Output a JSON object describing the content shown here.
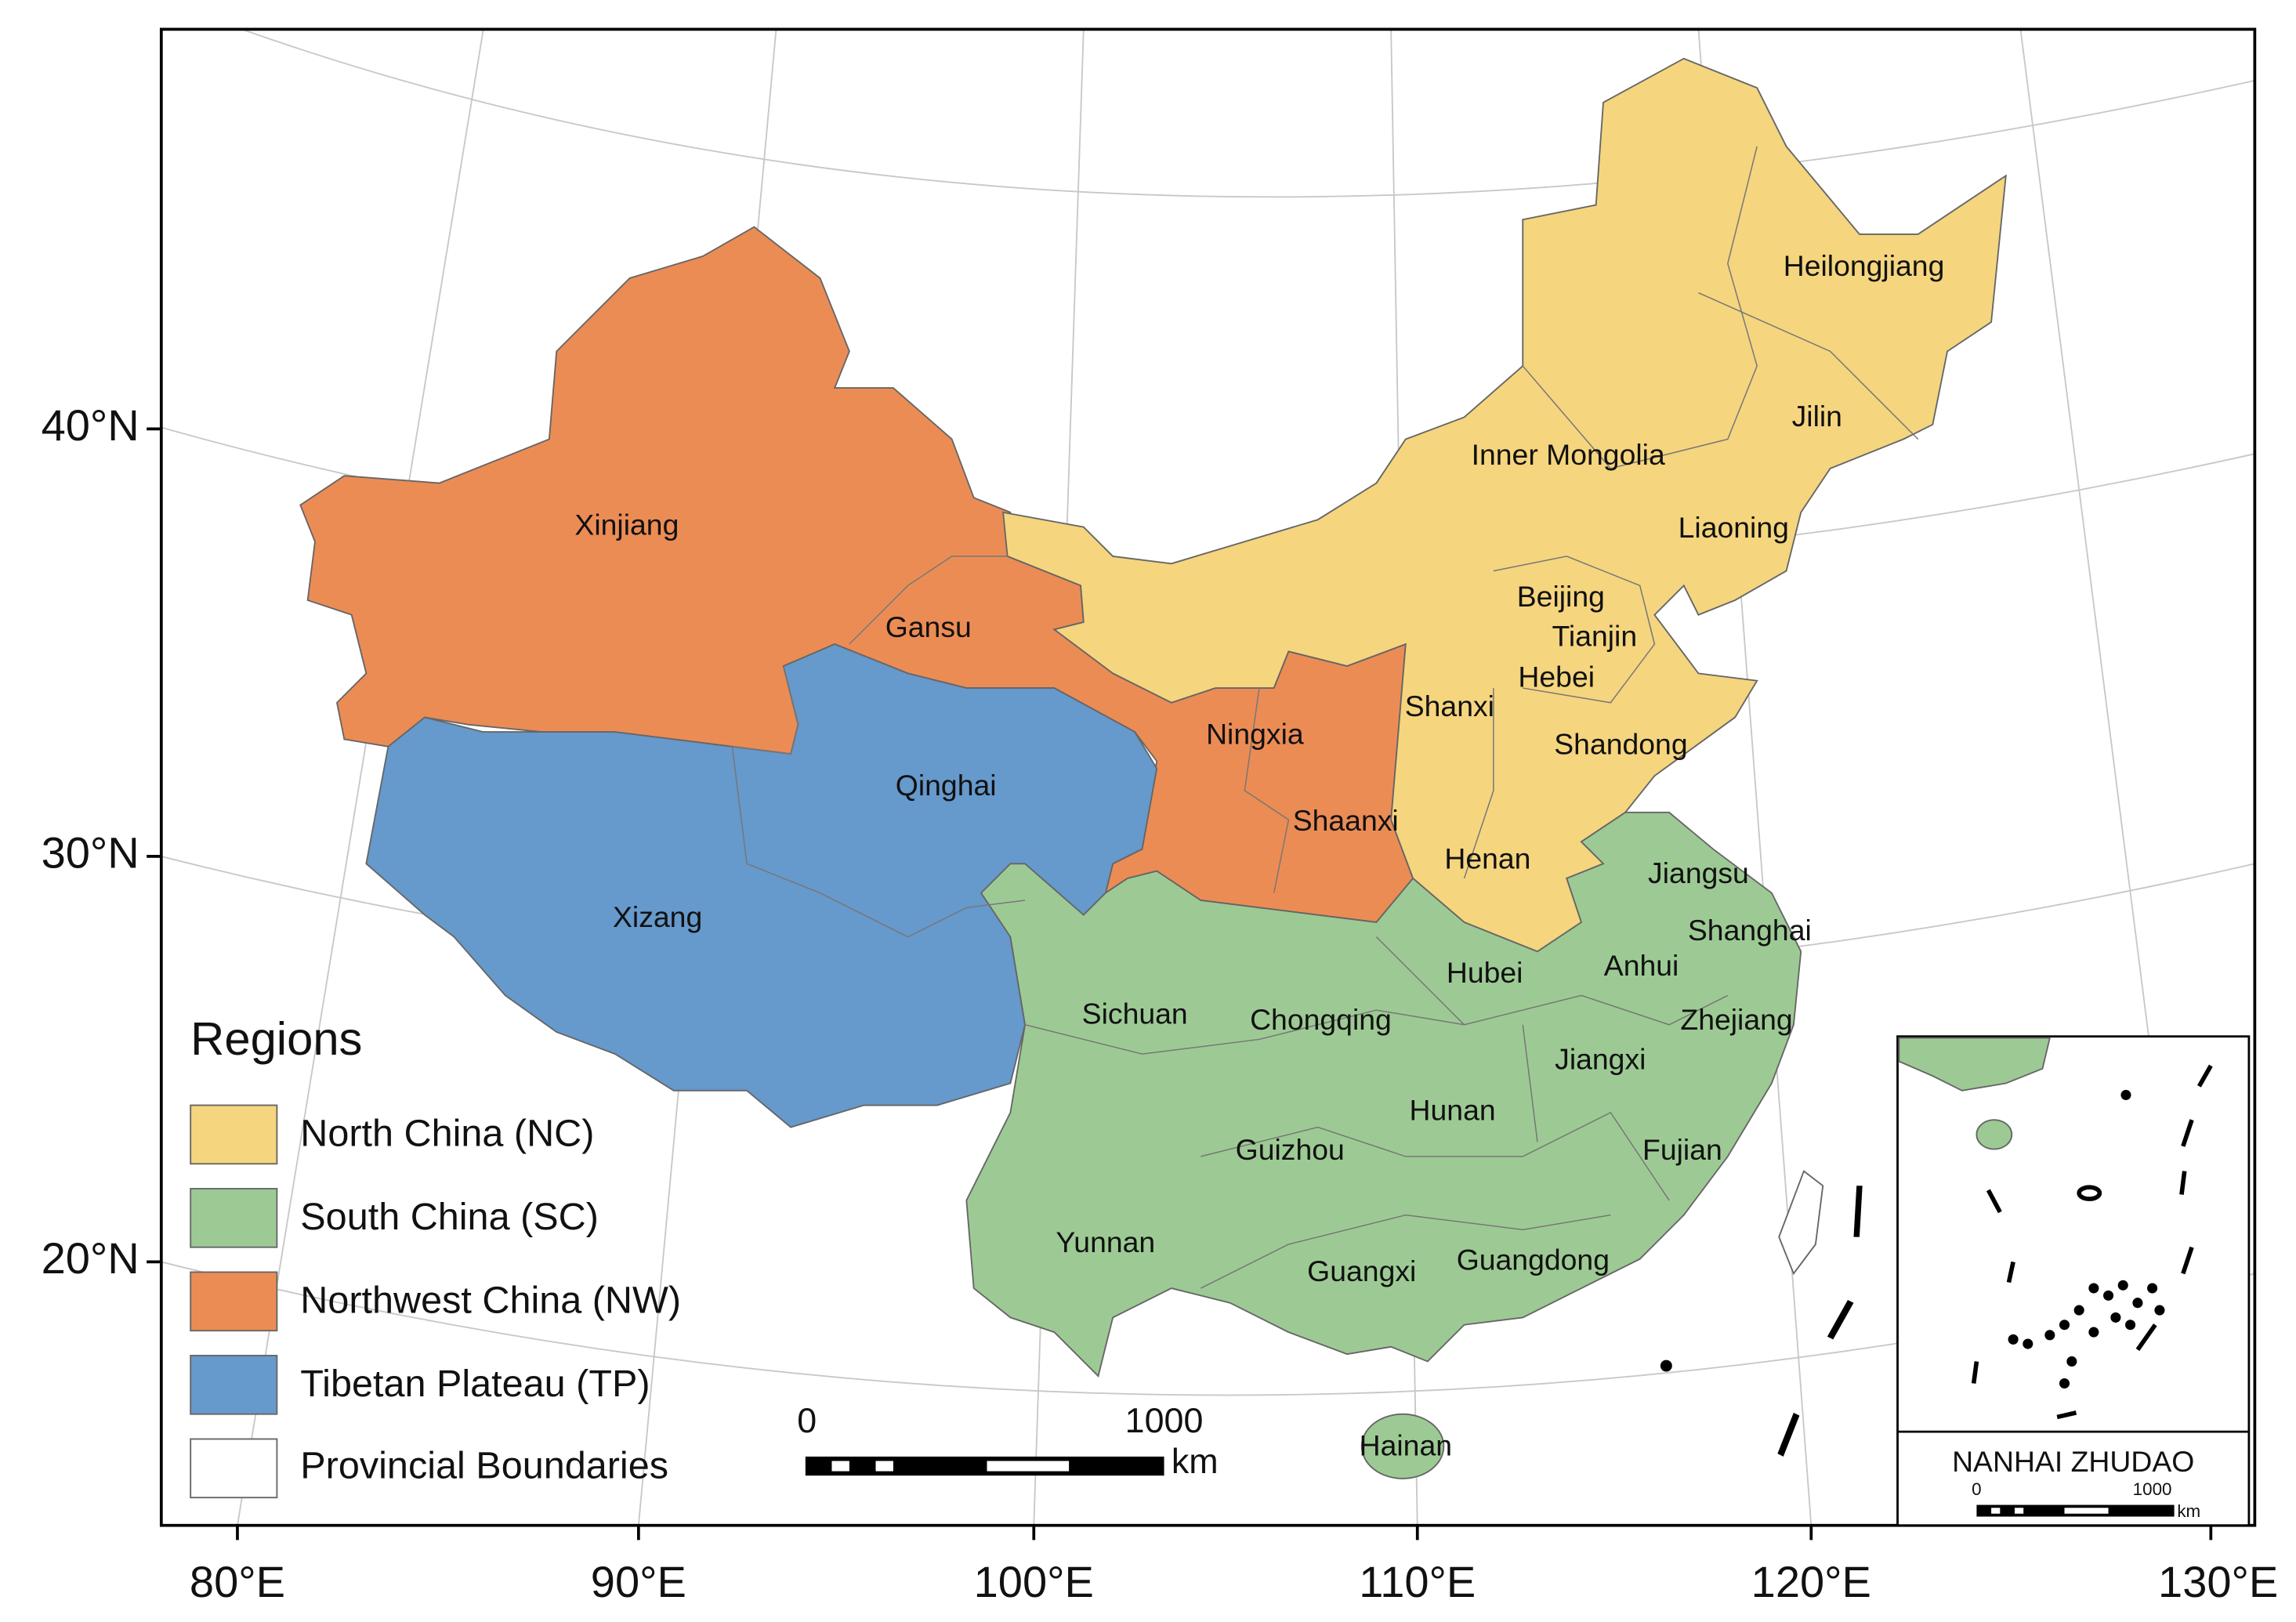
{
  "axes": {
    "lat_labels": [
      "40°N",
      "30°N",
      "20°N"
    ],
    "lon_labels": [
      "80°E",
      "90°E",
      "100°E",
      "110°E",
      "120°E",
      "130°E"
    ]
  },
  "provinces": [
    "Heilongjiang",
    "Jilin",
    "Inner Mongolia",
    "Liaoning",
    "Beijing",
    "Tianjin",
    "Hebei",
    "Shanxi",
    "Shandong",
    "Ningxia",
    "Shaanxi",
    "Henan",
    "Jiangsu",
    "Shanghai",
    "Anhui",
    "Hubei",
    "Zhejiang",
    "Chongqing",
    "Sichuan",
    "Jiangxi",
    "Hunan",
    "Guizhou",
    "Fujian",
    "Yunnan",
    "Guangxi",
    "Guangdong",
    "Hainan",
    "Xinjiang",
    "Gansu",
    "Qinghai",
    "Xizang"
  ],
  "legend": {
    "title": "Regions",
    "items": [
      {
        "name": "North China (NC)",
        "color": "#f5d57e"
      },
      {
        "name": "South China (SC)",
        "color": "#9dca94"
      },
      {
        "name": "Northwest China (NW)",
        "color": "#ec8c55"
      },
      {
        "name": "Tibetan Plateau (TP)",
        "color": "#6699cc"
      },
      {
        "name": "Provincial Boundaries",
        "color": "#ffffff"
      }
    ]
  },
  "scale_bar": {
    "start": "0",
    "end": "1000",
    "unit": "km"
  },
  "inset": {
    "title": "NANHAI ZHUDAO",
    "start": "0",
    "end": "1000",
    "unit": "km"
  }
}
